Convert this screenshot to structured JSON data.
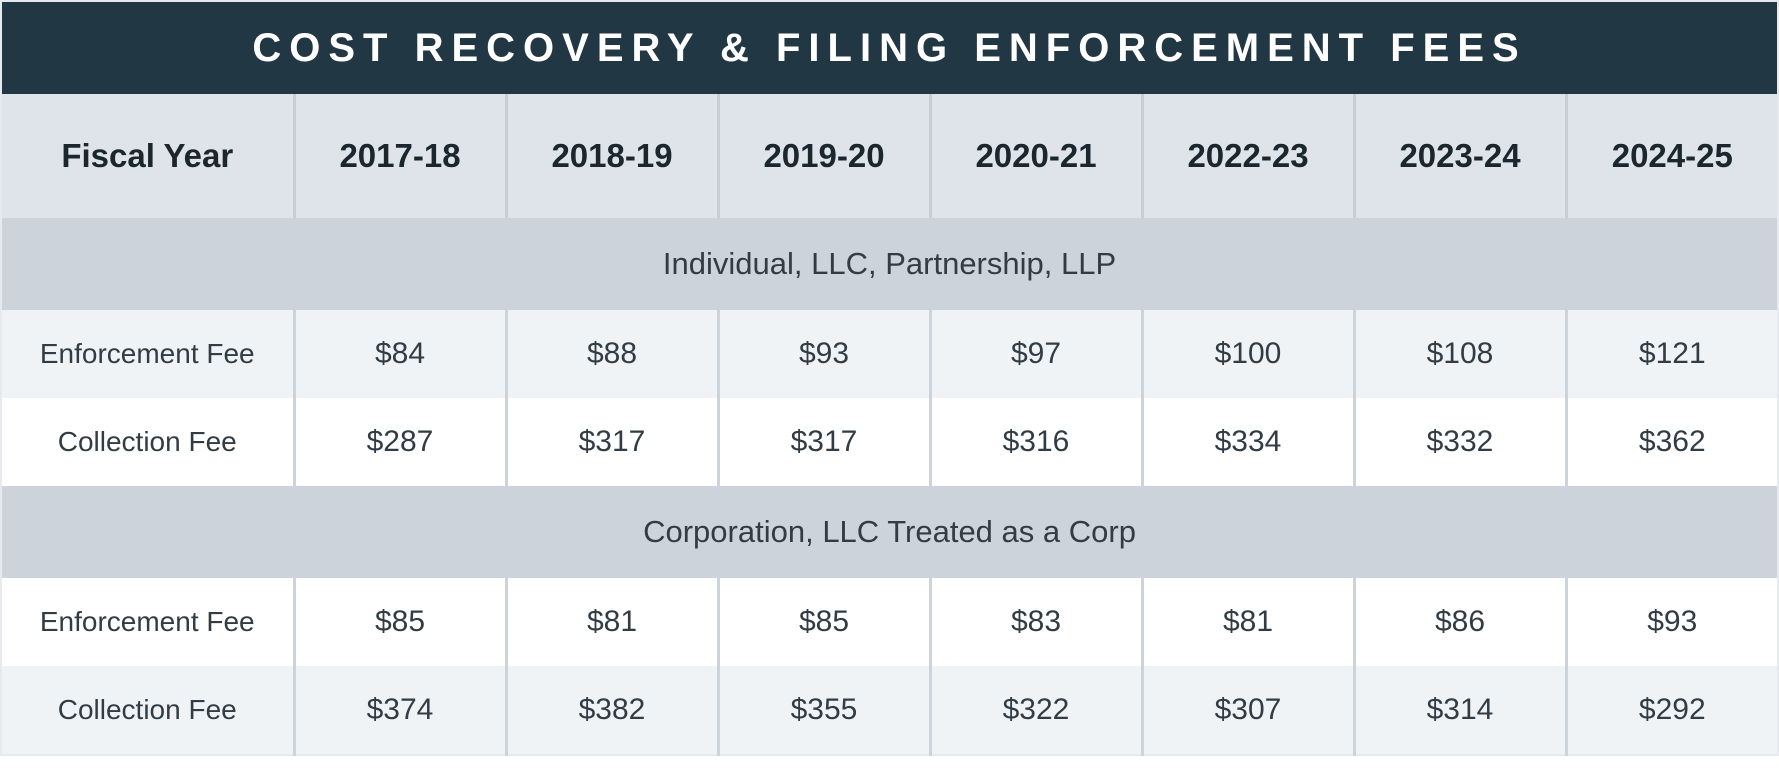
{
  "chart_data": {
    "type": "table",
    "title": "COST RECOVERY & FILING ENFORCEMENT FEES",
    "header": {
      "row_label": "Fiscal Year",
      "columns": [
        "2017-18",
        "2018-19",
        "2019-20",
        "2020-21",
        "2022-23",
        "2023-24",
        "2024-25"
      ]
    },
    "sections": [
      {
        "name": "Individual, LLC, Partnership, LLP",
        "rows": [
          {
            "label": "Enforcement Fee",
            "values": [
              "$84",
              "$88",
              "$93",
              "$97",
              "$100",
              "$108",
              "$121"
            ]
          },
          {
            "label": "Collection Fee",
            "values": [
              "$287",
              "$317",
              "$317",
              "$316",
              "$334",
              "$332",
              "$362"
            ]
          }
        ]
      },
      {
        "name": "Corporation, LLC Treated as a Corp",
        "rows": [
          {
            "label": "Enforcement Fee",
            "values": [
              "$85",
              "$81",
              "$85",
              "$83",
              "$81",
              "$86",
              "$93"
            ]
          },
          {
            "label": "Collection Fee",
            "values": [
              "$374",
              "$382",
              "$355",
              "$322",
              "$307",
              "$314",
              "$292"
            ]
          }
        ]
      }
    ]
  },
  "colors": {
    "header_bg": "#213744",
    "header_text": "#ffffff",
    "year_row_bg": "#dfe4ea",
    "band_bg": "#ccd3da",
    "light_row_bg": "#eff3f6",
    "white_row_bg": "#ffffff",
    "divider": "#ccd3da",
    "text": "#323c44"
  }
}
